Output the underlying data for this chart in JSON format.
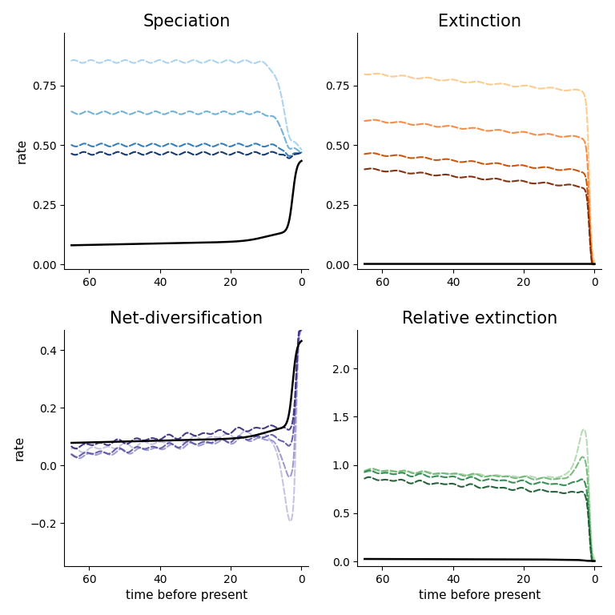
{
  "titles": [
    "Speciation",
    "Extinction",
    "Net-diversification",
    "Relative extinction"
  ],
  "xlabel": "time before present",
  "ylabel": "rate",
  "title_fontsize": 15,
  "axis_label_fontsize": 11,
  "tick_fontsize": 10,
  "blue_colors": [
    "#a8d1f0",
    "#6aaed6",
    "#2878b8",
    "#08306b"
  ],
  "orange_colors": [
    "#fdc98a",
    "#f5873d",
    "#c84e00",
    "#7f2704"
  ],
  "purple_colors": [
    "#c4c1e0",
    "#9b97cc",
    "#6059a9",
    "#3a3180"
  ],
  "green_colors": [
    "#b3d9b0",
    "#74b87a",
    "#2d8a50",
    "#1a5c30"
  ],
  "spec_alt_levels": [
    0.85,
    0.635,
    0.5,
    0.465
  ],
  "ext_alt_levels": [
    0.8,
    0.605,
    0.465,
    0.4
  ],
  "spec_ylim": [
    -0.02,
    0.97
  ],
  "ext_ylim": [
    -0.02,
    0.97
  ],
  "netdiv_ylim": [
    -0.35,
    0.47
  ],
  "relext_ylim": [
    -0.05,
    2.4
  ],
  "spec_yticks": [
    0.0,
    0.25,
    0.5,
    0.75
  ],
  "ext_yticks": [
    0.0,
    0.25,
    0.5,
    0.75
  ],
  "netdiv_yticks": [
    -0.2,
    0.0,
    0.2,
    0.4
  ],
  "relext_yticks": [
    0.0,
    0.5,
    1.0,
    1.5,
    2.0
  ]
}
